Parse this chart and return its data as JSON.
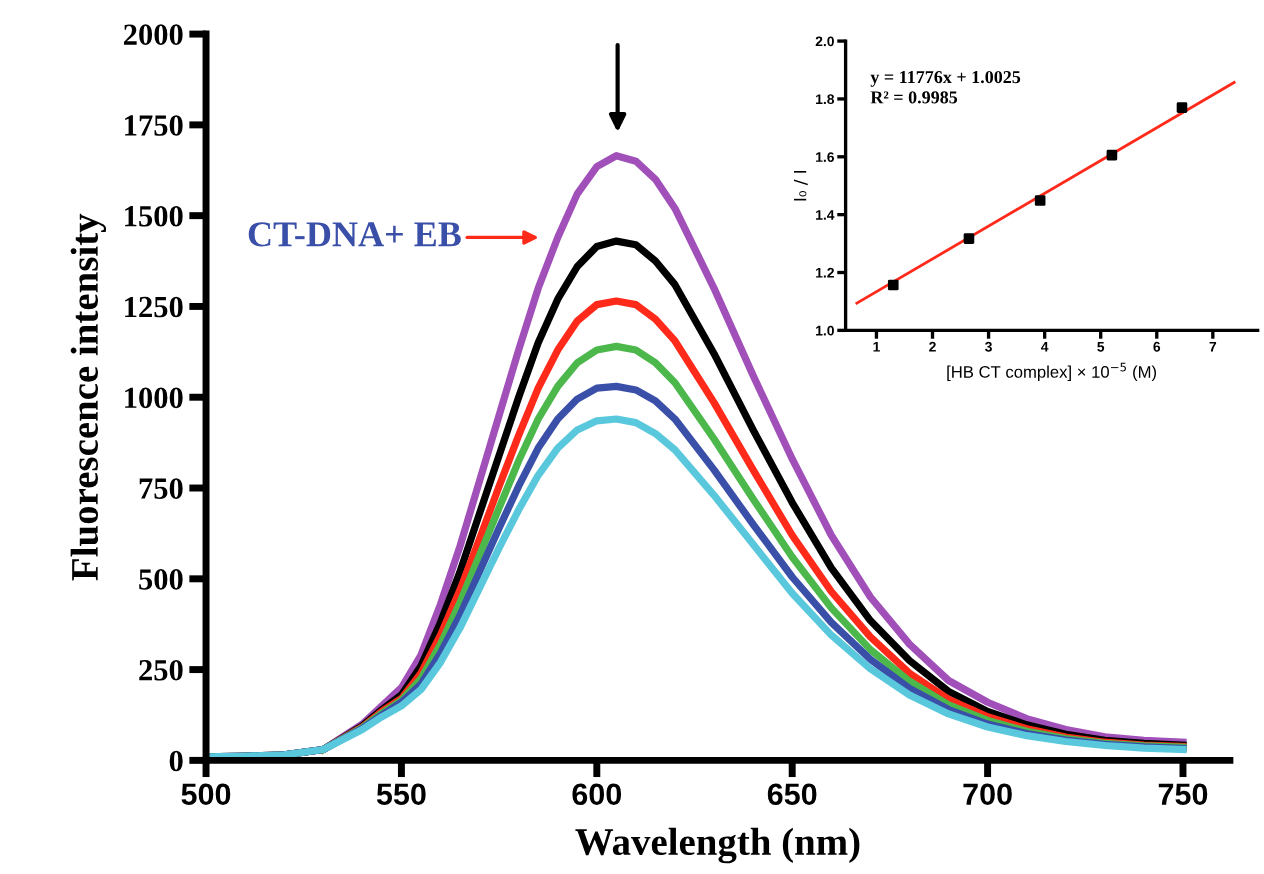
{
  "chart_data": [
    {
      "type": "line",
      "xlabel": "Wavelength (nm)",
      "ylabel": "Fluorescence intensity",
      "x": [
        500,
        510,
        520,
        530,
        540,
        545,
        550,
        555,
        560,
        565,
        570,
        575,
        580,
        585,
        590,
        595,
        600,
        605,
        610,
        615,
        620,
        630,
        640,
        650,
        660,
        670,
        680,
        690,
        700,
        710,
        720,
        730,
        740,
        750
      ],
      "series": [
        {
          "color": "#a050b8",
          "values": [
            10,
            12,
            15,
            30,
            100,
            150,
            200,
            290,
            430,
            590,
            770,
            950,
            1130,
            1300,
            1440,
            1560,
            1635,
            1665,
            1650,
            1600,
            1520,
            1300,
            1060,
            830,
            620,
            450,
            320,
            220,
            160,
            115,
            85,
            65,
            55,
            50
          ]
        },
        {
          "color": "#000000",
          "values": [
            10,
            12,
            15,
            30,
            95,
            140,
            180,
            260,
            380,
            520,
            680,
            840,
            1000,
            1150,
            1270,
            1360,
            1415,
            1430,
            1420,
            1375,
            1310,
            1120,
            910,
            710,
            530,
            385,
            275,
            190,
            135,
            98,
            72,
            55,
            47,
            42
          ]
        },
        {
          "color": "#ff2a1a",
          "values": [
            null,
            null,
            null,
            30,
            92,
            135,
            170,
            240,
            345,
            470,
            610,
            755,
            895,
            1025,
            1130,
            1210,
            1255,
            1265,
            1255,
            1215,
            1155,
            985,
            800,
            620,
            465,
            340,
            240,
            168,
            120,
            87,
            64,
            50,
            42,
            38
          ]
        },
        {
          "color": "#4cb84c",
          "values": [
            null,
            null,
            null,
            30,
            90,
            130,
            165,
            225,
            320,
            435,
            565,
            695,
            825,
            940,
            1030,
            1095,
            1130,
            1140,
            1130,
            1095,
            1040,
            885,
            720,
            560,
            420,
            305,
            218,
            153,
            110,
            80,
            60,
            47,
            40,
            36
          ]
        },
        {
          "color": "#3a4fa8",
          "values": [
            null,
            null,
            15,
            30,
            88,
            125,
            160,
            210,
            295,
            400,
            520,
            640,
            755,
            860,
            940,
            995,
            1025,
            1030,
            1020,
            990,
            940,
            800,
            650,
            505,
            380,
            278,
            198,
            140,
            100,
            74,
            56,
            44,
            37,
            33
          ]
        },
        {
          "color": "#5ac8dc",
          "values": [
            10,
            12,
            15,
            30,
            85,
            120,
            150,
            195,
            270,
            365,
            475,
            585,
            690,
            785,
            860,
            910,
            935,
            940,
            930,
            900,
            855,
            730,
            595,
            460,
            345,
            252,
            180,
            128,
            92,
            68,
            52,
            41,
            34,
            30
          ]
        }
      ],
      "xlim": [
        500,
        762
      ],
      "ylim": [
        0,
        2000
      ],
      "xticks": [
        500,
        550,
        600,
        650,
        700,
        750
      ],
      "yticks": [
        0,
        250,
        500,
        750,
        1000,
        1250,
        1500,
        1750,
        2000
      ],
      "annotations": [
        "CT-DNA+ EB"
      ],
      "grid": false,
      "legend": false,
      "line_style": "solid",
      "marker": "none"
    },
    {
      "type": "scatter",
      "xlabel": "[HB CT complex] × 10$^{−5}$ (M)",
      "ylabel": "I₀ / I",
      "series": [
        {
          "type": "scatter",
          "marker": "square",
          "color": "#000000",
          "x": [
            1.3,
            2.65,
            3.92,
            5.2,
            6.45
          ],
          "values": [
            1.157,
            1.317,
            1.449,
            1.606,
            1.77
          ]
        },
        {
          "type": "line",
          "color": "#ff2a1a",
          "x": [
            0.65,
            7.38
          ],
          "values": [
            1.094,
            1.857
          ]
        }
      ],
      "xlim": [
        0.45,
        7.8
      ],
      "ylim": [
        1.0,
        2.0
      ],
      "xticks": [
        1,
        2,
        3,
        4,
        5,
        6,
        7
      ],
      "yticks": [
        {
          "value": 1,
          "label": "1.0"
        },
        1.2,
        1.4,
        1.6,
        1.8,
        {
          "value": 2,
          "label": "2.0"
        }
      ],
      "annotations": [
        "y = 11776x + 1.0025",
        "R² = 0.9985"
      ],
      "grid": false,
      "legend": false
    }
  ]
}
